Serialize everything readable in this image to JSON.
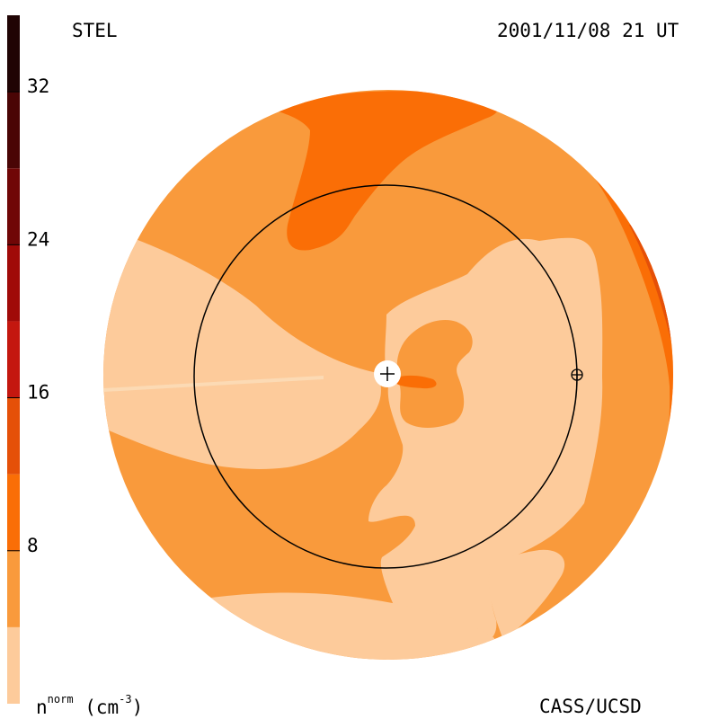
{
  "header": {
    "left_title": "STEL",
    "right_title": "2001/11/08 21 UT"
  },
  "footer": {
    "units_main": "n",
    "units_sup": "norm",
    "units_rest": " (cm",
    "units_exp": "-3",
    "units_close": ")",
    "credit": "CASS/UCSD"
  },
  "colorbar": {
    "ticks": [
      {
        "label": "32",
        "value": 32
      },
      {
        "label": "24",
        "value": 24
      },
      {
        "label": "16",
        "value": 16
      },
      {
        "label": "8",
        "value": 8
      }
    ],
    "range": [
      0,
      36
    ],
    "bands": [
      {
        "from": 0,
        "to": 4,
        "color": "#FDCB9B"
      },
      {
        "from": 4,
        "to": 8,
        "color": "#F99A3C"
      },
      {
        "from": 8,
        "to": 12,
        "color": "#FA6E06"
      },
      {
        "from": 12,
        "to": 16,
        "color": "#E55008"
      },
      {
        "from": 16,
        "to": 20,
        "color": "#C4170F"
      },
      {
        "from": 20,
        "to": 24,
        "color": "#A00A08"
      },
      {
        "from": 24,
        "to": 28,
        "color": "#700606"
      },
      {
        "from": 28,
        "to": 32,
        "color": "#4A0505"
      },
      {
        "from": 32,
        "to": 36,
        "color": "#200404"
      }
    ]
  },
  "colors": {
    "level0": "#FDCB9B",
    "level1": "#F99A3C",
    "level2": "#FA6E06",
    "level3": "#E55008",
    "line": "#000000",
    "sun": "#ffffff"
  },
  "icons": {
    "sun": "sun-plus-icon",
    "earth": "earth-circle-plus-icon"
  }
}
